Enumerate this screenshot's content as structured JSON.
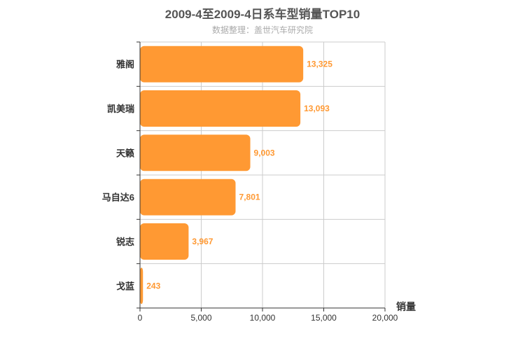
{
  "chart_data": {
    "type": "bar",
    "orientation": "horizontal",
    "title": "2009-4至2009-4日系车型销量TOP10",
    "subtitle": "数据整理：盖世汽车研究院",
    "categories": [
      "雅阁",
      "凯美瑞",
      "天籁",
      "马自达6",
      "锐志",
      "戈蓝"
    ],
    "values": [
      13325,
      13093,
      9003,
      7801,
      3967,
      243
    ],
    "value_labels": [
      "13,325",
      "13,093",
      "9,003",
      "7,801",
      "3,967",
      "243"
    ],
    "xlabel": "销量",
    "ylabel": "",
    "xlim": [
      0,
      20000
    ],
    "xticks": [
      0,
      5000,
      10000,
      15000,
      20000
    ],
    "xtick_labels": [
      "0",
      "5,000",
      "10,000",
      "15,000",
      "20,000"
    ],
    "grid": true,
    "bar_color": "#ff9933"
  }
}
